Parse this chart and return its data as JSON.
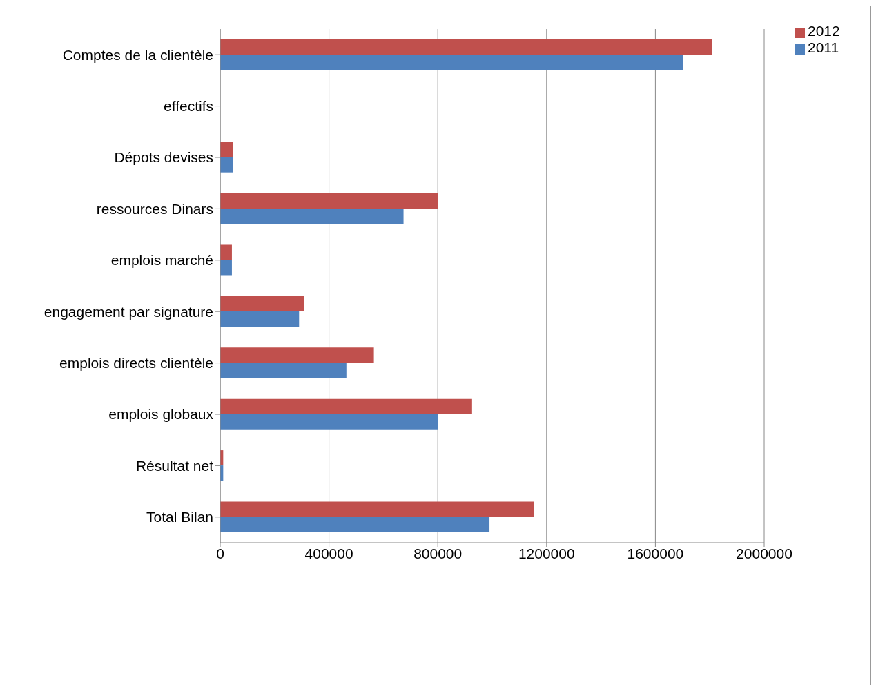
{
  "chart_data": {
    "type": "bar",
    "orientation": "horizontal",
    "categories": [
      "Comptes de la clientèle",
      "effectifs",
      "Dépots devises",
      "ressources Dinars",
      "emplois marché ",
      "engagement par signature",
      "emplois directs clientèle",
      "emplois globaux",
      "Résultat net",
      "Total Bilan"
    ],
    "series": [
      {
        "name": "2012",
        "color": "#c0504d",
        "values": [
          1808000,
          null,
          48000,
          802000,
          43000,
          309000,
          565000,
          926000,
          11000,
          1154000
        ]
      },
      {
        "name": "2011",
        "color": "#4f81bd",
        "values": [
          1703000,
          null,
          48000,
          674000,
          43000,
          290000,
          464000,
          802000,
          11000,
          990000
        ]
      }
    ],
    "xlim": [
      0,
      2000000
    ],
    "xticks": [
      0,
      400000,
      800000,
      1200000,
      1600000,
      2000000
    ],
    "grid": "x",
    "legend": "top right"
  }
}
